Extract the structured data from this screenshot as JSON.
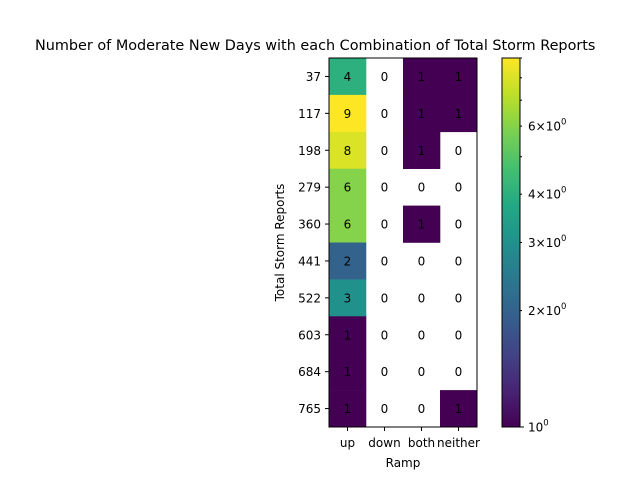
{
  "chart_data": {
    "type": "heatmap",
    "title": "Number of Moderate New Days with each Combination of Total Storm Reports",
    "xlabel": "Ramp",
    "ylabel": "Total Storm Reports",
    "x_categories": [
      "up",
      "down",
      "both",
      "neither"
    ],
    "y_categories": [
      "37",
      "117",
      "198",
      "279",
      "360",
      "441",
      "522",
      "603",
      "684",
      "765"
    ],
    "values": [
      [
        4,
        0,
        1,
        1
      ],
      [
        9,
        0,
        1,
        1
      ],
      [
        8,
        0,
        1,
        0
      ],
      [
        6,
        0,
        0,
        0
      ],
      [
        6,
        0,
        1,
        0
      ],
      [
        2,
        0,
        0,
        0
      ],
      [
        3,
        0,
        0,
        0
      ],
      [
        1,
        0,
        0,
        0
      ],
      [
        1,
        0,
        0,
        0
      ],
      [
        1,
        0,
        0,
        1
      ]
    ],
    "colorbar": {
      "scale": "log",
      "colormap": "viridis",
      "range": [
        1,
        9
      ],
      "major_ticks": [
        {
          "value": 1,
          "base": "10",
          "exp": "0",
          "mantissa": ""
        }
      ],
      "minor_labeled_ticks": [
        {
          "value": 2,
          "mantissa": "2",
          "base": "10",
          "exp": "0"
        },
        {
          "value": 3,
          "mantissa": "3",
          "base": "10",
          "exp": "0"
        },
        {
          "value": 4,
          "mantissa": "4",
          "base": "10",
          "exp": "0"
        },
        {
          "value": 6,
          "mantissa": "6",
          "base": "10",
          "exp": "0"
        }
      ],
      "minor_unlabeled_ticks": [
        5,
        7,
        8,
        9
      ]
    }
  }
}
